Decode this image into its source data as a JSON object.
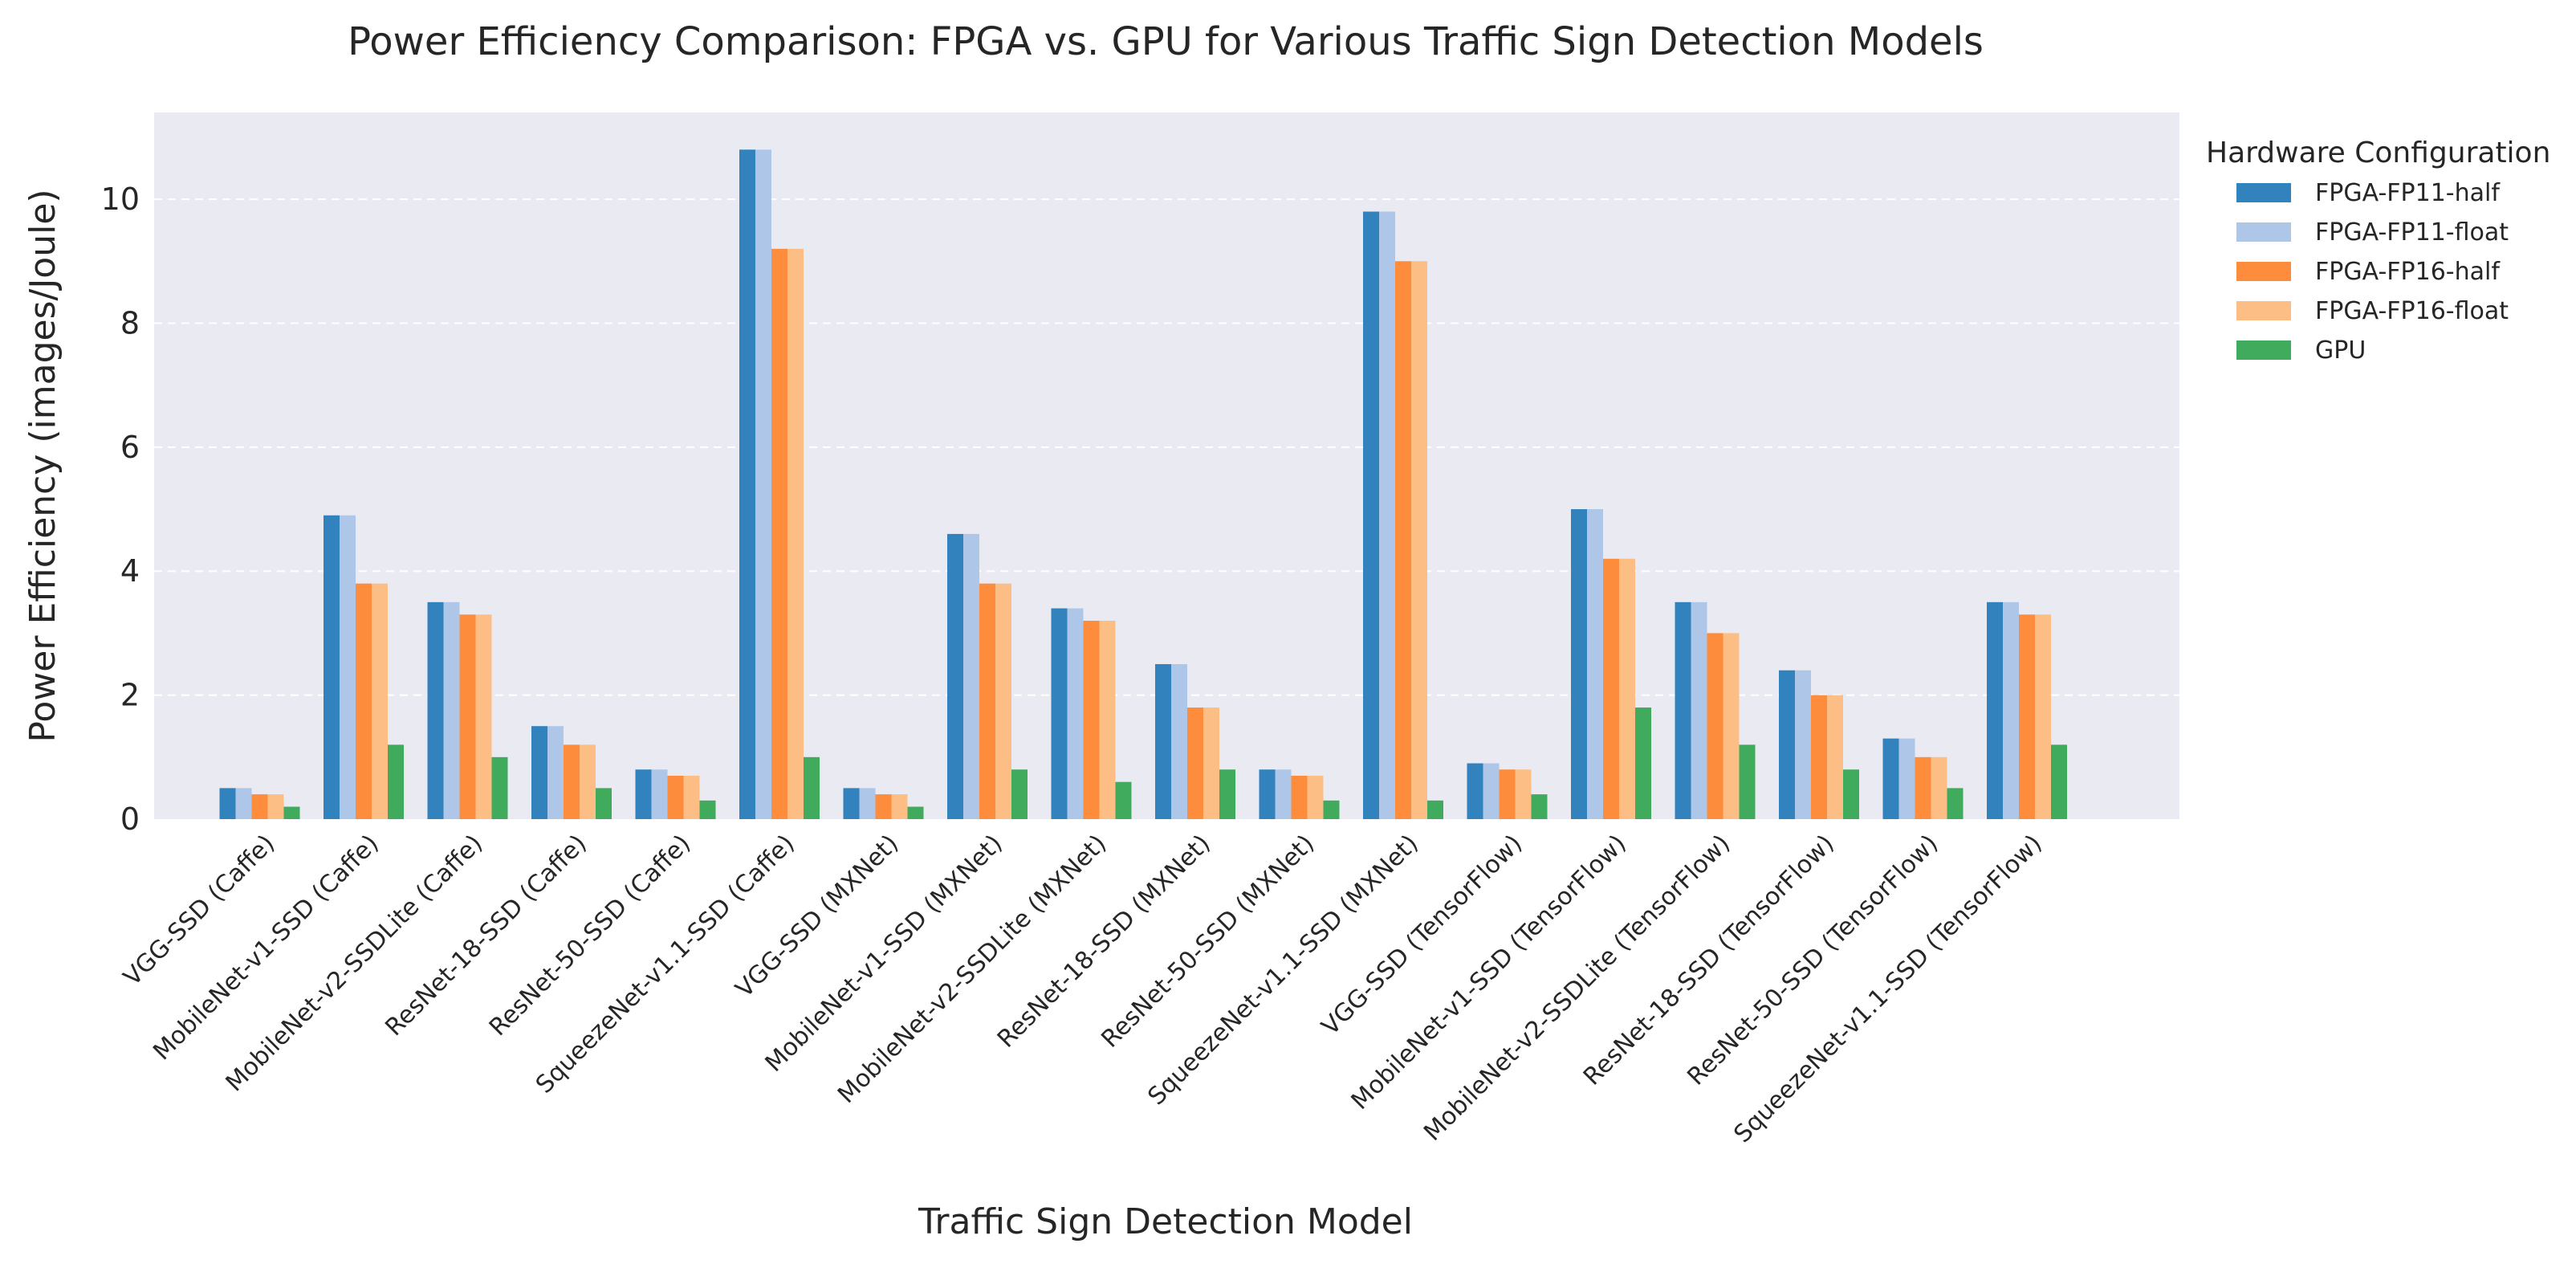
{
  "chart_data": {
    "type": "bar",
    "title": "Power Efficiency Comparison: FPGA vs. GPU for Various Traffic Sign Detection Models",
    "xlabel": "Traffic Sign Detection Model",
    "ylabel": "Power Efficiency (images/Joule)",
    "ylim": [
      0,
      11.4
    ],
    "yticks": [
      0,
      2,
      4,
      6,
      8,
      10
    ],
    "grid": true,
    "legend_title": "Hardware Configuration",
    "legend_position": "outside-top-right",
    "categories": [
      "VGG-SSD (Caffe)",
      "MobileNet-v1-SSD (Caffe)",
      "MobileNet-v2-SSDLite (Caffe)",
      "ResNet-18-SSD (Caffe)",
      "ResNet-50-SSD (Caffe)",
      "SqueezeNet-v1.1-SSD (Caffe)",
      "VGG-SSD (MXNet)",
      "MobileNet-v1-SSD (MXNet)",
      "MobileNet-v2-SSDLite (MXNet)",
      "ResNet-18-SSD (MXNet)",
      "ResNet-50-SSD (MXNet)",
      "SqueezeNet-v1.1-SSD (MXNet)",
      "VGG-SSD (TensorFlow)",
      "MobileNet-v1-SSD (TensorFlow)",
      "MobileNet-v2-SSDLite (TensorFlow)",
      "ResNet-18-SSD (TensorFlow)",
      "ResNet-50-SSD (TensorFlow)",
      "SqueezeNet-v1.1-SSD (TensorFlow)"
    ],
    "series": [
      {
        "name": "FPGA-FP11-half",
        "color": "#3182bd",
        "values": [
          0.5,
          4.9,
          3.5,
          1.5,
          0.8,
          10.8,
          0.5,
          4.6,
          3.4,
          2.5,
          0.8,
          9.8,
          0.9,
          5.0,
          3.5,
          2.4,
          1.3,
          3.5
        ]
      },
      {
        "name": "FPGA-FP11-float",
        "color": "#aec7e8",
        "values": [
          0.5,
          4.9,
          3.5,
          1.5,
          0.8,
          10.8,
          0.5,
          4.6,
          3.4,
          2.5,
          0.8,
          9.8,
          0.9,
          5.0,
          3.5,
          2.4,
          1.3,
          3.5
        ]
      },
      {
        "name": "FPGA-FP16-half",
        "color": "#fd8d3c",
        "values": [
          0.4,
          3.8,
          3.3,
          1.2,
          0.7,
          9.2,
          0.4,
          3.8,
          3.2,
          1.8,
          0.7,
          9.0,
          0.8,
          4.2,
          3.0,
          2.0,
          1.0,
          3.3
        ]
      },
      {
        "name": "FPGA-FP16-float",
        "color": "#fdbe85",
        "values": [
          0.4,
          3.8,
          3.3,
          1.2,
          0.7,
          9.2,
          0.4,
          3.8,
          3.2,
          1.8,
          0.7,
          9.0,
          0.8,
          4.2,
          3.0,
          2.0,
          1.0,
          3.3
        ]
      },
      {
        "name": "GPU",
        "color": "#41ab5d",
        "values": [
          0.2,
          1.2,
          1.0,
          0.5,
          0.3,
          1.0,
          0.2,
          0.8,
          0.6,
          0.8,
          0.3,
          0.3,
          0.4,
          1.8,
          1.2,
          0.8,
          0.5,
          1.2
        ]
      }
    ]
  },
  "colors": {
    "plot_background": "#eaeaf2",
    "grid": "#ffffff",
    "text": "#262626"
  }
}
